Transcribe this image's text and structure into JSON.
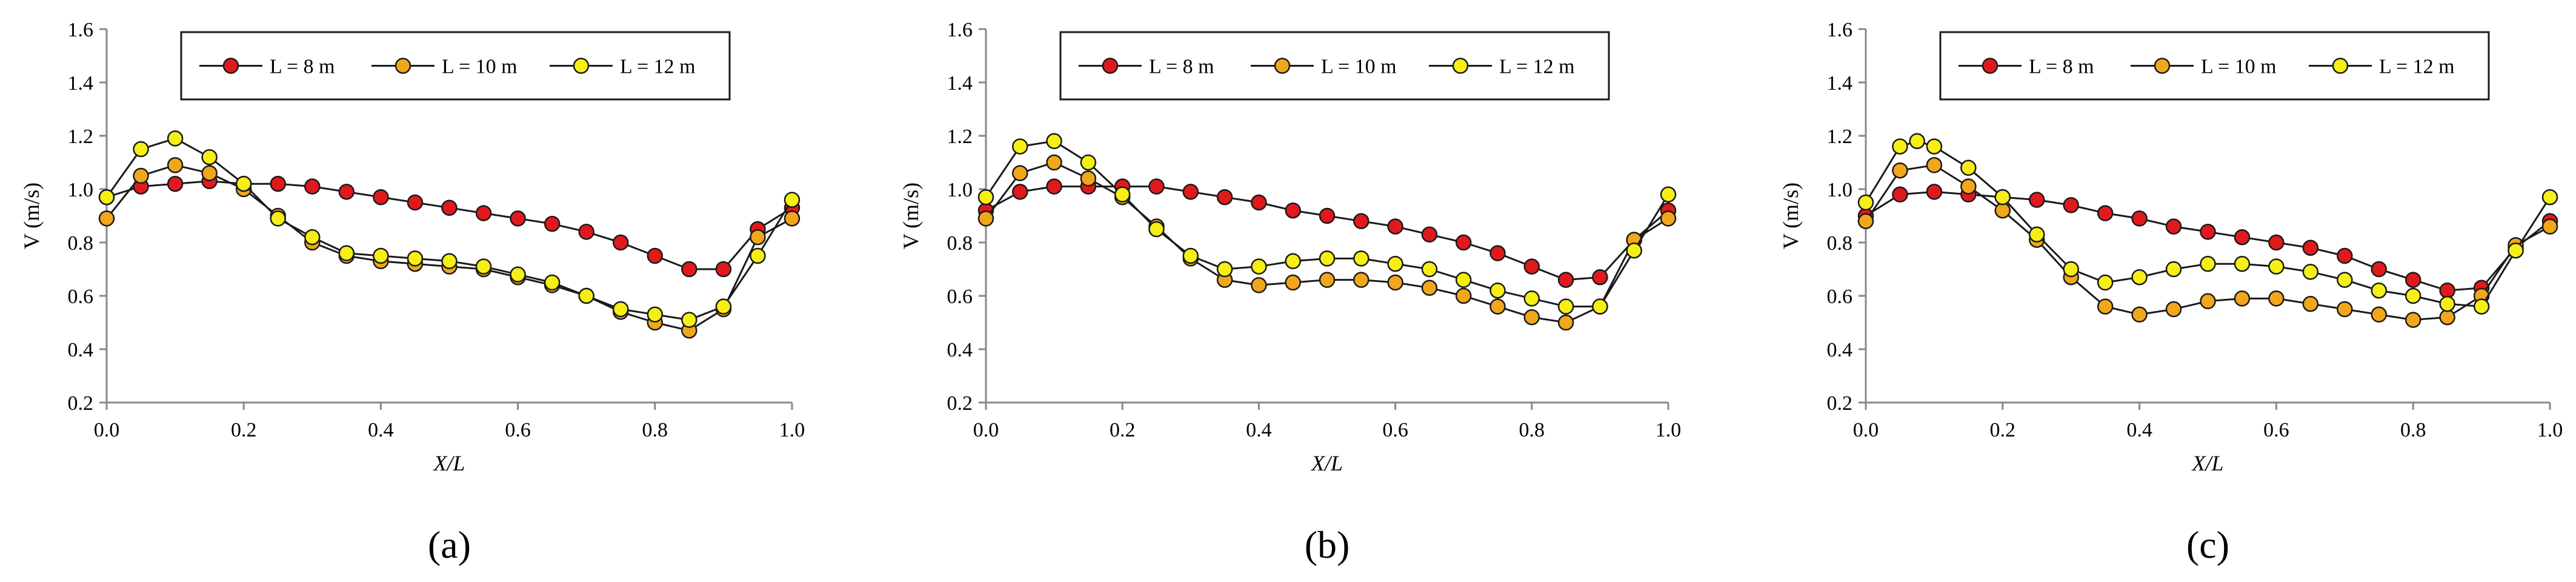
{
  "colors": {
    "red": "#e0191d",
    "orange": "#f0a71b",
    "yellow": "#f5ef16",
    "axis": "#888888",
    "line": "#1a1a1a"
  },
  "chart_data": [
    {
      "type": "line",
      "panel_label": "(a)",
      "xlabel": "X/L",
      "ylabel": "V (m/s)",
      "xlim": [
        0,
        1
      ],
      "ylim": [
        0.2,
        1.6
      ],
      "xticks": [
        "0.0",
        "0.2",
        "0.4",
        "0.6",
        "0.8",
        "1.0"
      ],
      "yticks": [
        "0.2",
        "0.4",
        "0.6",
        "0.8",
        "1.0",
        "1.2",
        "1.4",
        "1.6"
      ],
      "legend_position": "top-center",
      "x": [
        0,
        0.05,
        0.1,
        0.15,
        0.2,
        0.25,
        0.3,
        0.35,
        0.4,
        0.45,
        0.5,
        0.55,
        0.6,
        0.65,
        0.7,
        0.75,
        0.8,
        0.85,
        0.9,
        0.95,
        1.0
      ],
      "series": [
        {
          "name": "L = 8 m",
          "color_key": "red",
          "values": [
            0.97,
            1.01,
            1.02,
            1.03,
            1.02,
            1.02,
            1.01,
            0.99,
            0.97,
            0.95,
            0.93,
            0.91,
            0.89,
            0.87,
            0.84,
            0.8,
            0.75,
            0.7,
            0.7,
            0.85,
            0.93
          ]
        },
        {
          "name": "L = 10 m",
          "color_key": "orange",
          "values": [
            0.89,
            1.05,
            1.09,
            1.06,
            1.0,
            0.9,
            0.8,
            0.75,
            0.73,
            0.72,
            0.71,
            0.7,
            0.67,
            0.64,
            0.6,
            0.54,
            0.5,
            0.47,
            0.55,
            0.82,
            0.89
          ]
        },
        {
          "name": "L = 12 m",
          "color_key": "yellow",
          "values": [
            0.97,
            1.15,
            1.19,
            1.12,
            1.02,
            0.89,
            0.82,
            0.76,
            0.75,
            0.74,
            0.73,
            0.71,
            0.68,
            0.65,
            0.6,
            0.55,
            0.53,
            0.51,
            0.56,
            0.75,
            0.96
          ]
        }
      ]
    },
    {
      "type": "line",
      "panel_label": "(b)",
      "xlabel": "X/L",
      "ylabel": "V (m/s)",
      "xlim": [
        0,
        1
      ],
      "ylim": [
        0.2,
        1.6
      ],
      "xticks": [
        "0.0",
        "0.2",
        "0.4",
        "0.6",
        "0.8",
        "1.0"
      ],
      "yticks": [
        "0.2",
        "0.4",
        "0.6",
        "0.8",
        "1.0",
        "1.2",
        "1.4",
        "1.6"
      ],
      "legend_position": "top-center",
      "x": [
        0,
        0.05,
        0.1,
        0.15,
        0.2,
        0.25,
        0.3,
        0.35,
        0.4,
        0.45,
        0.5,
        0.55,
        0.6,
        0.65,
        0.7,
        0.75,
        0.8,
        0.85,
        0.9,
        0.95,
        1.0
      ],
      "series": [
        {
          "name": "L = 8 m",
          "color_key": "red",
          "values": [
            0.92,
            0.99,
            1.01,
            1.01,
            1.01,
            1.01,
            0.99,
            0.97,
            0.95,
            0.92,
            0.9,
            0.88,
            0.86,
            0.83,
            0.8,
            0.76,
            0.71,
            0.66,
            0.67,
            0.81,
            0.92
          ]
        },
        {
          "name": "L = 10 m",
          "color_key": "orange",
          "values": [
            0.89,
            1.06,
            1.1,
            1.04,
            0.97,
            0.86,
            0.74,
            0.66,
            0.64,
            0.65,
            0.66,
            0.66,
            0.65,
            0.63,
            0.6,
            0.56,
            0.52,
            0.5,
            0.56,
            0.81,
            0.89
          ]
        },
        {
          "name": "L = 12 m",
          "color_key": "yellow",
          "values": [
            0.97,
            1.16,
            1.18,
            1.1,
            0.98,
            0.85,
            0.75,
            0.7,
            0.71,
            0.73,
            0.74,
            0.74,
            0.72,
            0.7,
            0.66,
            0.62,
            0.59,
            0.56,
            0.56,
            0.77,
            0.98
          ]
        }
      ]
    },
    {
      "type": "line",
      "panel_label": "(c)",
      "xlabel": "X/L",
      "ylabel": "V (m/s)",
      "xlim": [
        0,
        1
      ],
      "ylim": [
        0.2,
        1.6
      ],
      "xticks": [
        "0.0",
        "0.2",
        "0.4",
        "0.6",
        "0.8",
        "1.0"
      ],
      "yticks": [
        "0.2",
        "0.4",
        "0.6",
        "0.8",
        "1.0",
        "1.2",
        "1.4",
        "1.6"
      ],
      "legend_position": "top-center",
      "x": [
        0,
        0.05,
        0.075,
        0.1,
        0.15,
        0.2,
        0.25,
        0.3,
        0.35,
        0.4,
        0.45,
        0.5,
        0.55,
        0.6,
        0.65,
        0.7,
        0.75,
        0.8,
        0.85,
        0.9,
        0.95,
        1.0
      ],
      "series": [
        {
          "name": "L = 8 m",
          "color_key": "red",
          "x": [
            0,
            0.05,
            0.1,
            0.15,
            0.2,
            0.25,
            0.3,
            0.35,
            0.4,
            0.45,
            0.5,
            0.55,
            0.6,
            0.65,
            0.7,
            0.75,
            0.8,
            0.85,
            0.9,
            0.95,
            1.0
          ],
          "values": [
            0.9,
            0.98,
            0.99,
            0.98,
            0.97,
            0.96,
            0.94,
            0.91,
            0.89,
            0.86,
            0.84,
            0.82,
            0.8,
            0.78,
            0.75,
            0.7,
            0.66,
            0.62,
            0.63,
            0.78,
            0.88
          ]
        },
        {
          "name": "L = 10 m",
          "color_key": "orange",
          "x": [
            0,
            0.05,
            0.1,
            0.15,
            0.2,
            0.25,
            0.3,
            0.35,
            0.4,
            0.45,
            0.5,
            0.55,
            0.6,
            0.65,
            0.7,
            0.75,
            0.8,
            0.85,
            0.9,
            0.95,
            1.0
          ],
          "values": [
            0.88,
            1.07,
            1.09,
            1.01,
            0.92,
            0.81,
            0.67,
            0.56,
            0.53,
            0.55,
            0.58,
            0.59,
            0.59,
            0.57,
            0.55,
            0.53,
            0.51,
            0.52,
            0.6,
            0.79,
            0.86
          ]
        },
        {
          "name": "L = 12 m",
          "color_key": "yellow",
          "x": [
            0,
            0.05,
            0.075,
            0.1,
            0.15,
            0.2,
            0.25,
            0.3,
            0.35,
            0.4,
            0.45,
            0.5,
            0.55,
            0.6,
            0.65,
            0.7,
            0.75,
            0.8,
            0.85,
            0.9,
            0.95,
            1.0
          ],
          "values": [
            0.95,
            1.16,
            1.18,
            1.16,
            1.08,
            0.97,
            0.83,
            0.7,
            0.65,
            0.67,
            0.7,
            0.72,
            0.72,
            0.71,
            0.69,
            0.66,
            0.62,
            0.6,
            0.57,
            0.56,
            0.77,
            0.97
          ]
        }
      ]
    }
  ]
}
